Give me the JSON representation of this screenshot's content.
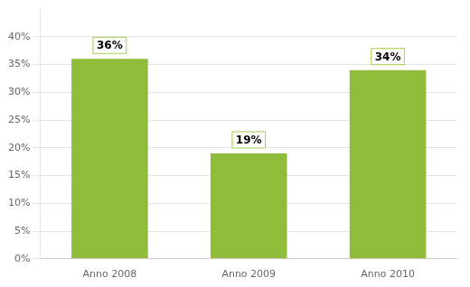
{
  "chart_data": {
    "type": "bar",
    "categories": [
      "Anno 2008",
      "Anno 2009",
      "Anno 2010"
    ],
    "values": [
      0.36,
      0.19,
      0.34
    ],
    "value_labels": [
      "36%",
      "19%",
      "34%"
    ],
    "data_labels": true,
    "color": "#8fbc3a",
    "ylim": [
      0,
      0.45
    ],
    "yticks": [
      {
        "value": 0,
        "label": "0%"
      },
      {
        "value": 0.05,
        "label": "5%"
      },
      {
        "value": 0.1,
        "label": "10%"
      },
      {
        "value": 0.15,
        "label": "15%"
      },
      {
        "value": 0.2,
        "label": "20%"
      },
      {
        "value": 0.25,
        "label": "25%"
      },
      {
        "value": 0.3,
        "label": "30%"
      },
      {
        "value": 0.35,
        "label": "35%"
      },
      {
        "value": 0.4,
        "label": "40%"
      }
    ],
    "grid": true
  }
}
